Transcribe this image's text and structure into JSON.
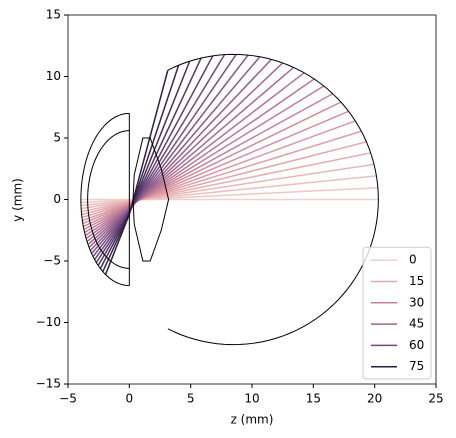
{
  "chart_data": {
    "type": "raytrace",
    "xlabel": "z (mm)",
    "ylabel": "y (mm)",
    "xlim": [
      -5,
      25
    ],
    "xticks": [
      {
        "value": -5,
        "label": "−5"
      },
      0,
      5,
      10,
      15,
      20,
      25
    ],
    "ylim": [
      -15,
      15
    ],
    "yticks": [
      {
        "value": -15,
        "label": "−15"
      },
      {
        "value": -10,
        "label": "−10"
      },
      {
        "value": -5,
        "label": "−5"
      },
      0,
      5,
      10,
      15
    ],
    "legend": {
      "position": "lower right",
      "entries": [
        {
          "name": "0",
          "color": "#edd1cb"
        },
        {
          "name": "15",
          "color": "#e3a6ab"
        },
        {
          "name": "30",
          "color": "#c98399"
        },
        {
          "name": "45",
          "color": "#9e6590"
        },
        {
          "name": "60",
          "color": "#6d4880"
        },
        {
          "name": "75",
          "color": "#2d1e3e"
        }
      ]
    },
    "outline_color": "#000000",
    "outlines": [
      {
        "kind": "ellipse-arc",
        "center": [
          8.5,
          0
        ],
        "radii": [
          11.8,
          11.8
        ],
        "angles": [
          -117,
          117
        ]
      },
      {
        "kind": "ellipse-arc",
        "center": [
          0,
          0
        ],
        "radii": [
          3.95,
          7
        ],
        "angles": [
          90,
          270
        ]
      },
      {
        "kind": "ellipse-arc",
        "center": [
          0,
          0
        ],
        "radii": [
          3.4,
          5.6
        ],
        "angles": [
          90,
          270
        ]
      },
      {
        "kind": "polyline",
        "x": [
          0,
          0
        ],
        "y": [
          7,
          -7
        ]
      },
      {
        "kind": "polyline",
        "x": [
          0.3,
          0.4,
          1.1,
          1.7,
          2.6,
          3.2,
          2.6,
          1.7,
          1.1,
          0.4,
          0.3
        ],
        "y": [
          0,
          2,
          5,
          5,
          2.5,
          0,
          -2.5,
          -5,
          -5,
          -2,
          0
        ]
      }
    ],
    "rays": [
      {
        "hue": 0,
        "x": [
          -3.95,
          0,
          20.3
        ],
        "y": [
          0,
          0,
          0
        ]
      },
      {
        "hue": 3,
        "x": [
          -3.95,
          0,
          20.26
        ],
        "y": [
          -0.24,
          -0.05,
          0.96
        ]
      },
      {
        "hue": 6,
        "x": [
          -3.94,
          0,
          20.14
        ],
        "y": [
          -0.49,
          -0.1,
          1.92
        ]
      },
      {
        "hue": 9,
        "x": [
          -3.93,
          0,
          19.95
        ],
        "y": [
          -0.73,
          -0.14,
          2.86
        ]
      },
      {
        "hue": 12,
        "x": [
          -3.91,
          0,
          19.68
        ],
        "y": [
          -0.98,
          -0.19,
          3.79
        ]
      },
      {
        "hue": 15,
        "x": [
          -3.89,
          0,
          19.33
        ],
        "y": [
          -1.22,
          -0.24,
          4.69
        ]
      },
      {
        "hue": 18,
        "x": [
          -3.86,
          0,
          18.91
        ],
        "y": [
          -1.46,
          -0.29,
          5.55
        ]
      },
      {
        "hue": 21,
        "x": [
          -3.83,
          0,
          18.42
        ],
        "y": [
          -1.71,
          -0.34,
          6.39
        ]
      },
      {
        "hue": 24,
        "x": [
          -3.79,
          0,
          17.87
        ],
        "y": [
          -1.95,
          -0.38,
          7.17
        ]
      },
      {
        "hue": 27,
        "x": [
          -3.75,
          0,
          17.25
        ],
        "y": [
          -2.2,
          -0.43,
          7.92
        ]
      },
      {
        "hue": 30,
        "x": [
          -3.7,
          0,
          16.58
        ],
        "y": [
          -2.44,
          -0.48,
          8.6
        ]
      },
      {
        "hue": 33,
        "x": [
          -3.65,
          0,
          15.85
        ],
        "y": [
          -2.68,
          -0.53,
          9.23
        ]
      },
      {
        "hue": 36,
        "x": [
          -3.59,
          0,
          15.07
        ],
        "y": [
          -2.93,
          -0.58,
          9.8
        ]
      },
      {
        "hue": 39,
        "x": [
          -3.52,
          0,
          14.25
        ],
        "y": [
          -3.17,
          -0.62,
          10.3
        ]
      },
      {
        "hue": 42,
        "x": [
          -3.45,
          0,
          13.39
        ],
        "y": [
          -3.42,
          -0.67,
          10.74
        ]
      },
      {
        "hue": 45,
        "x": [
          -3.37,
          0,
          12.5
        ],
        "y": [
          -3.66,
          -0.72,
          11.1
        ]
      },
      {
        "hue": 48,
        "x": [
          -3.28,
          0,
          11.58
        ],
        "y": [
          -3.9,
          -0.77,
          11.39
        ]
      },
      {
        "hue": 51,
        "x": [
          -3.18,
          0,
          10.64
        ],
        "y": [
          -4.15,
          -0.82,
          11.6
        ]
      },
      {
        "hue": 54,
        "x": [
          -3.08,
          0,
          9.68
        ],
        "y": [
          -4.39,
          -0.86,
          11.74
        ]
      },
      {
        "hue": 57,
        "x": [
          -2.96,
          0,
          8.72
        ],
        "y": [
          -4.64,
          -0.91,
          11.8
        ]
      },
      {
        "hue": 60,
        "x": [
          -2.83,
          0,
          7.76
        ],
        "y": [
          -4.88,
          -0.96,
          11.78
        ]
      },
      {
        "hue": 63,
        "x": [
          -2.69,
          0,
          6.8
        ],
        "y": [
          -5.12,
          -1.01,
          11.68
        ]
      },
      {
        "hue": 66,
        "x": [
          -2.54,
          0,
          5.85
        ],
        "y": [
          -5.37,
          -1.06,
          11.5
        ]
      },
      {
        "hue": 69,
        "x": [
          -2.36,
          0,
          4.92
        ],
        "y": [
          -5.61,
          -1.1,
          11.25
        ]
      },
      {
        "hue": 72,
        "x": [
          -2.16,
          0,
          4.02
        ],
        "y": [
          -5.86,
          -1.15,
          10.92
        ]
      },
      {
        "hue": 75,
        "x": [
          -1.94,
          0,
          3.14
        ],
        "y": [
          -6.1,
          -1.2,
          10.51
        ]
      }
    ]
  }
}
